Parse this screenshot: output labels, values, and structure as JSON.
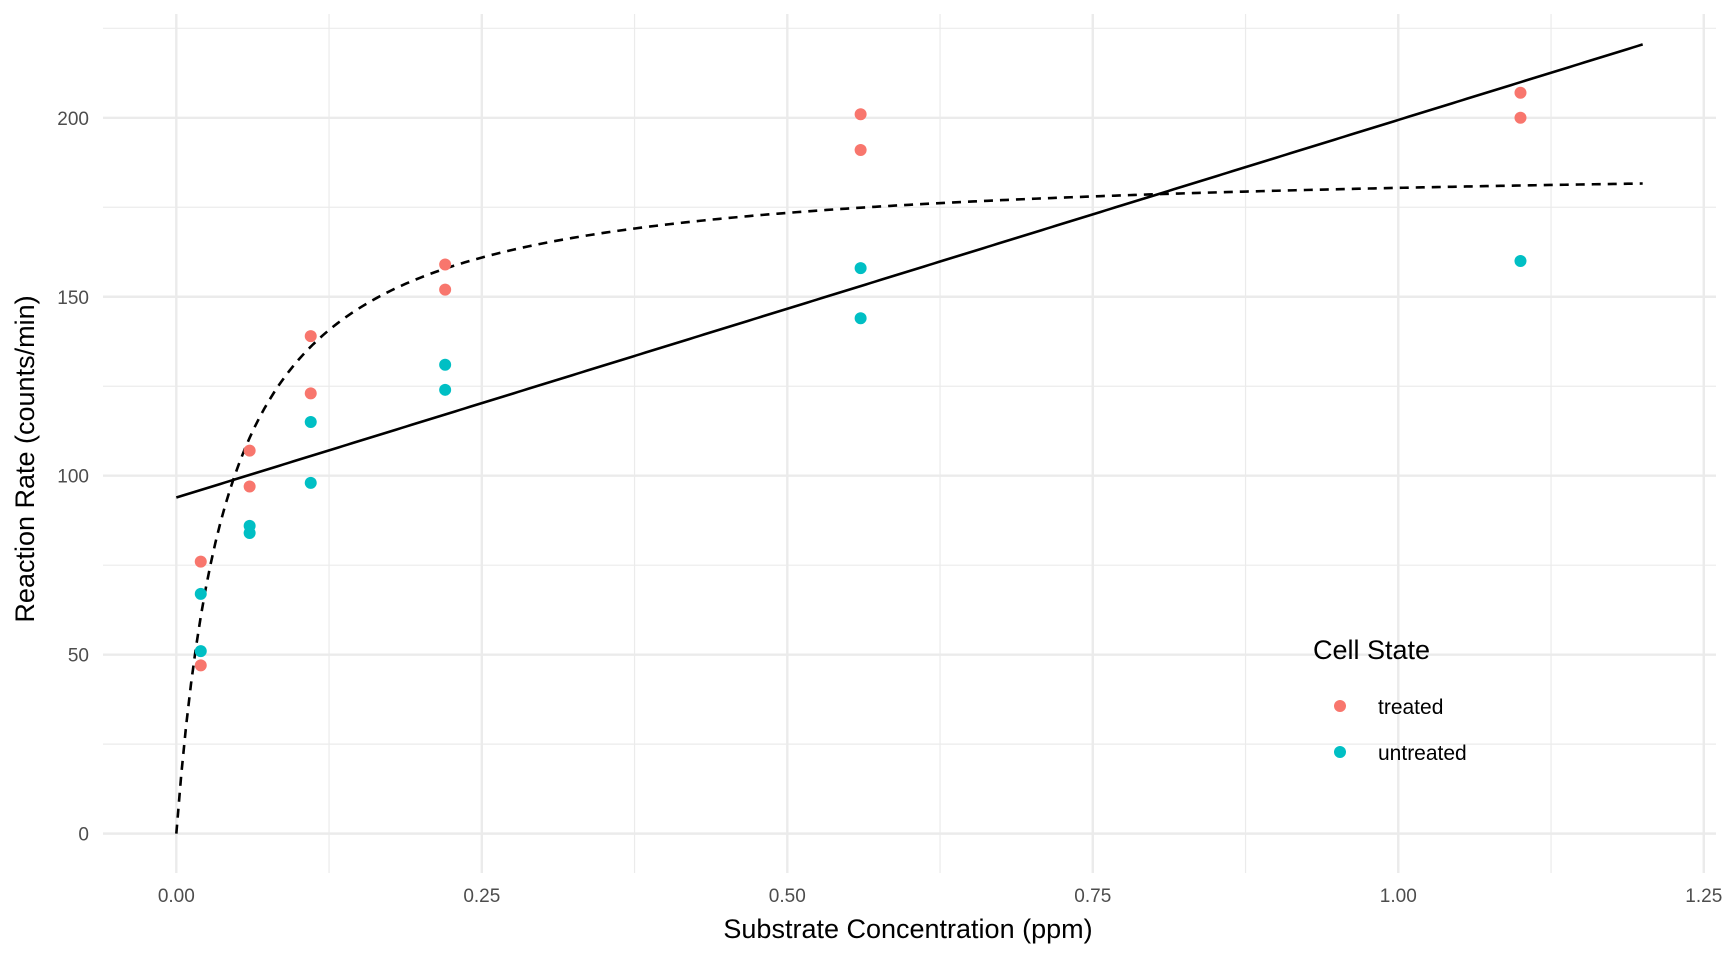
{
  "chart_data": {
    "type": "scatter",
    "title": "",
    "xlabel": "Substrate Concentration (ppm)",
    "ylabel": "Reaction Rate (counts/min)",
    "xlim": [
      -0.06,
      1.26
    ],
    "ylim": [
      -11,
      229
    ],
    "x_ticks": [
      0.0,
      0.25,
      0.5,
      0.75,
      1.0,
      1.25
    ],
    "x_tick_labels": [
      "0.00",
      "0.25",
      "0.50",
      "0.75",
      "1.00",
      "1.25"
    ],
    "y_ticks": [
      0,
      50,
      100,
      150,
      200
    ],
    "y_tick_labels": [
      "0",
      "50",
      "100",
      "150",
      "200"
    ],
    "grid": true,
    "legend": {
      "title": "Cell State",
      "position": "bottom-right-inside",
      "entries": [
        {
          "label": "treated",
          "color": "#F8766D"
        },
        {
          "label": "untreated",
          "color": "#00BFC4"
        }
      ]
    },
    "series": [
      {
        "name": "treated",
        "color": "#F8766D",
        "points": [
          [
            0.02,
            76
          ],
          [
            0.02,
            47
          ],
          [
            0.06,
            97
          ],
          [
            0.06,
            107
          ],
          [
            0.11,
            123
          ],
          [
            0.11,
            139
          ],
          [
            0.22,
            159
          ],
          [
            0.22,
            152
          ],
          [
            0.56,
            191
          ],
          [
            0.56,
            201
          ],
          [
            1.1,
            207
          ],
          [
            1.1,
            200
          ]
        ]
      },
      {
        "name": "untreated",
        "color": "#00BFC4",
        "points": [
          [
            0.02,
            67
          ],
          [
            0.02,
            51
          ],
          [
            0.06,
            84
          ],
          [
            0.06,
            86
          ],
          [
            0.11,
            98
          ],
          [
            0.11,
            115
          ],
          [
            0.22,
            131
          ],
          [
            0.22,
            124
          ],
          [
            0.56,
            144
          ],
          [
            0.56,
            158
          ],
          [
            1.1,
            160
          ]
        ]
      }
    ],
    "overlays": [
      {
        "kind": "linear_fit",
        "style": "solid",
        "color": "#000000",
        "intercept": 93.9,
        "slope": 105.5,
        "x_range": [
          0.0,
          1.2
        ]
      },
      {
        "kind": "michaelis_menten_fit",
        "style": "dashed",
        "color": "#000000",
        "Vmax": 188.0,
        "Km": 0.042,
        "x_range": [
          0.0,
          1.2
        ]
      }
    ]
  }
}
